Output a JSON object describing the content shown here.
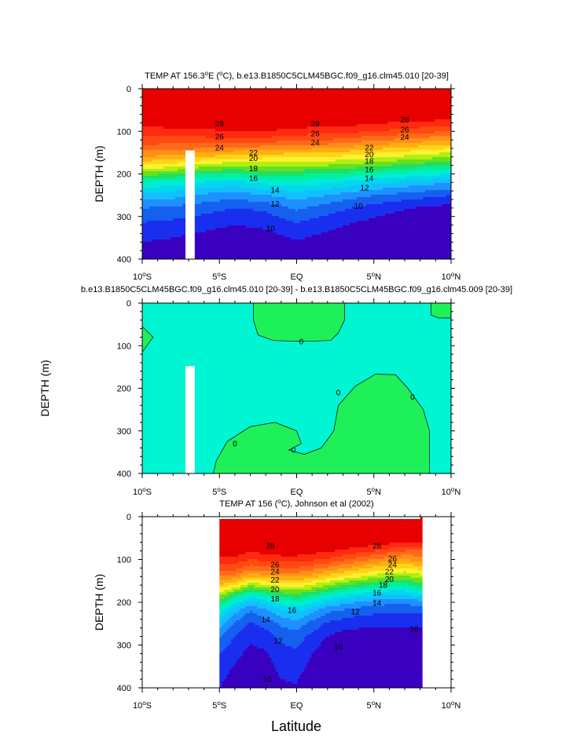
{
  "figure": {
    "xlabel": "Latitude"
  },
  "colors": {
    "palette": [
      "#3a00c0",
      "#1a2ef0",
      "#1660f0",
      "#1e90ff",
      "#14bfff",
      "#00d8ec",
      "#00ecd6",
      "#00f0a0",
      "#20e060",
      "#66e020",
      "#b0f010",
      "#fff030",
      "#ffd418",
      "#ffae10",
      "#ff8e1a",
      "#ff6a1a",
      "#ff4a12",
      "#ff2a10",
      "#e80000"
    ],
    "diff_background": "#00f5d2",
    "diff_positive": "#1ef05a"
  },
  "chart_data": [
    {
      "type": "contour",
      "title_parts": [
        "TEMP AT 156.3",
        "o",
        "E (",
        "o",
        "C), b.e13.B1850C5CLM45BGC.f09_g16.clm45.010 [20-39]"
      ],
      "ylabel": "DEPTH (m)",
      "xlim": [
        -10,
        10
      ],
      "ylim": [
        400,
        0
      ],
      "xticks": [
        "10",
        "5",
        "EQ",
        "5",
        "10"
      ],
      "xtick_suffix": [
        "S",
        "S",
        "",
        "N",
        "N"
      ],
      "yticks": [
        "0",
        "100",
        "200",
        "300",
        "400"
      ],
      "depths": [
        0,
        30,
        60,
        80,
        100,
        120,
        140,
        160,
        180,
        200,
        220,
        250,
        280,
        320,
        360,
        400
      ],
      "x": [
        -10,
        -8,
        -6,
        -4,
        -2,
        0,
        2,
        4,
        6,
        8,
        10
      ],
      "z": [
        [
          28.5,
          28.8,
          29.3,
          29.6,
          29.6,
          29.5,
          29.5,
          29.5,
          29.4,
          29.0,
          28.6
        ],
        [
          28.4,
          28.7,
          29.2,
          29.4,
          29.3,
          29.1,
          29.1,
          29.1,
          29.0,
          28.8,
          28.5
        ],
        [
          28.0,
          28.3,
          28.6,
          28.7,
          28.4,
          28.2,
          28.3,
          28.2,
          28.1,
          28.0,
          27.8
        ],
        [
          27.2,
          27.4,
          27.6,
          27.8,
          27.7,
          27.6,
          27.5,
          27.3,
          27.0,
          26.8,
          26.5
        ],
        [
          26.6,
          26.8,
          26.8,
          27.0,
          27.0,
          26.6,
          26.5,
          26.2,
          25.8,
          25.4,
          25.0
        ],
        [
          25.6,
          25.6,
          25.6,
          25.6,
          25.6,
          25.2,
          25.0,
          24.5,
          24.0,
          23.5,
          23.0
        ],
        [
          24.5,
          24.3,
          24.0,
          23.7,
          23.5,
          23.2,
          23.0,
          22.5,
          22.0,
          21.5,
          21.0
        ],
        [
          23.0,
          22.6,
          21.9,
          21.5,
          21.3,
          21.0,
          21.0,
          20.5,
          20.0,
          19.5,
          19.0
        ],
        [
          21.0,
          20.5,
          19.5,
          19.2,
          19.3,
          19.0,
          19.0,
          18.5,
          18.0,
          17.5,
          17.0
        ],
        [
          18.5,
          18.0,
          17.0,
          16.8,
          17.3,
          17.2,
          17.0,
          16.5,
          16.0,
          15.5,
          15.0
        ],
        [
          16.0,
          15.5,
          14.8,
          14.6,
          15.3,
          15.5,
          15.2,
          14.5,
          14.0,
          13.5,
          13.0
        ],
        [
          13.6,
          13.4,
          12.8,
          12.4,
          13.0,
          13.5,
          13.0,
          12.3,
          11.8,
          11.4,
          11.0
        ],
        [
          12.0,
          11.8,
          11.4,
          11.0,
          11.2,
          12.2,
          11.5,
          10.8,
          10.3,
          9.9,
          9.6
        ],
        [
          10.8,
          10.6,
          10.3,
          10.0,
          10.2,
          10.8,
          10.3,
          9.8,
          9.4,
          9.1,
          8.9
        ],
        [
          10.0,
          9.8,
          9.5,
          9.1,
          9.4,
          9.9,
          9.5,
          9.1,
          8.8,
          8.6,
          8.6
        ],
        [
          9.2,
          9.0,
          8.8,
          8.5,
          8.8,
          9.3,
          8.9,
          8.6,
          8.5,
          8.0,
          8.3
        ]
      ],
      "levels": [
        9,
        10,
        11,
        12,
        13,
        14,
        15,
        16,
        17,
        18,
        19,
        20,
        21,
        22,
        23,
        24,
        25,
        26,
        27,
        28,
        29
      ],
      "missing_strip_x": [
        -7.2,
        -6.6
      ],
      "contour_labels": [
        {
          "text": "28",
          "x": -5.0,
          "y": 82
        },
        {
          "text": "26",
          "x": -5.0,
          "y": 112
        },
        {
          "text": "24",
          "x": -5.0,
          "y": 138
        },
        {
          "text": "22",
          "x": -2.8,
          "y": 150
        },
        {
          "text": "20",
          "x": -2.8,
          "y": 163
        },
        {
          "text": "18",
          "x": -2.8,
          "y": 187
        },
        {
          "text": "16",
          "x": -2.8,
          "y": 210
        },
        {
          "text": "14",
          "x": -1.4,
          "y": 238
        },
        {
          "text": "12",
          "x": -1.4,
          "y": 270
        },
        {
          "text": "10",
          "x": -1.7,
          "y": 328
        },
        {
          "text": "28",
          "x": 1.2,
          "y": 82
        },
        {
          "text": "26",
          "x": 1.2,
          "y": 105
        },
        {
          "text": "24",
          "x": 1.2,
          "y": 126
        },
        {
          "text": "22",
          "x": 4.7,
          "y": 138
        },
        {
          "text": "20",
          "x": 4.7,
          "y": 154
        },
        {
          "text": "18",
          "x": 4.7,
          "y": 170
        },
        {
          "text": "16",
          "x": 4.7,
          "y": 190
        },
        {
          "text": "14",
          "x": 4.7,
          "y": 210
        },
        {
          "text": "12",
          "x": 4.4,
          "y": 232
        },
        {
          "text": "10",
          "x": 4.0,
          "y": 276
        },
        {
          "text": "28",
          "x": 7.0,
          "y": 73
        },
        {
          "text": "26",
          "x": 7.0,
          "y": 96
        },
        {
          "text": "24",
          "x": 7.0,
          "y": 113
        }
      ]
    },
    {
      "type": "contour",
      "title_parts": [
        "b.e13.B1850C5CLM45BGC.f09_g16.clm45.010 [20-39] - b.e13.B1850C5CLM45BGC.f09_g16.clm45.009 [20-39]"
      ],
      "ylabel": "DEPTH (m)",
      "xlim": [
        -10,
        10
      ],
      "ylim": [
        400,
        0
      ],
      "xticks": [
        "10",
        "5",
        "EQ",
        "5",
        "10"
      ],
      "xtick_suffix": [
        "S",
        "S",
        "",
        "N",
        "N"
      ],
      "yticks": [
        "0",
        "100",
        "200",
        "300",
        "400"
      ],
      "zero_contour_labels": [
        {
          "text": "0",
          "x": 0.3,
          "y": 90
        },
        {
          "text": "0",
          "x": 2.7,
          "y": 210
        },
        {
          "text": "0",
          "x": 7.5,
          "y": 220
        },
        {
          "text": "0",
          "x": -4.0,
          "y": 330
        },
        {
          "text": "0",
          "x": -0.2,
          "y": 345
        }
      ]
    },
    {
      "type": "contour",
      "title_parts": [
        "TEMP AT 156 (",
        "o",
        "C), Johnson et al (2002)"
      ],
      "ylabel": "DEPTH (m)",
      "xlim": [
        -10,
        10
      ],
      "ylim": [
        400,
        0
      ],
      "data_xrange": [
        -5,
        8
      ],
      "xticks": [
        "10",
        "5",
        "EQ",
        "5",
        "10"
      ],
      "xtick_suffix": [
        "S",
        "S",
        "",
        "N",
        "N"
      ],
      "yticks": [
        "0",
        "100",
        "200",
        "300",
        "400"
      ],
      "depths": [
        0,
        30,
        60,
        80,
        100,
        120,
        140,
        160,
        180,
        200,
        220,
        250,
        280,
        320,
        360,
        400
      ],
      "x": [
        -5,
        -4,
        -3,
        -2,
        -1,
        0,
        1,
        2,
        3,
        4,
        5,
        6,
        7,
        8
      ],
      "z": [
        [
          29.3,
          29.4,
          29.5,
          29.5,
          29.6,
          29.5,
          29.5,
          29.4,
          29.4,
          29.3,
          29.2,
          29.1,
          29.0,
          28.8
        ],
        [
          28.9,
          29.0,
          29.1,
          29.2,
          29.2,
          29.1,
          29.1,
          29.0,
          29.0,
          28.9,
          28.8,
          28.7,
          28.6,
          28.4
        ],
        [
          28.2,
          28.3,
          28.2,
          28.3,
          28.4,
          28.3,
          28.3,
          28.2,
          28.0,
          27.8,
          27.6,
          27.3,
          27.0,
          27.0
        ],
        [
          27.5,
          27.6,
          27.2,
          27.4,
          27.6,
          27.6,
          27.4,
          27.2,
          26.8,
          26.4,
          26.0,
          25.5,
          25.0,
          24.8
        ],
        [
          26.6,
          26.7,
          26.0,
          26.3,
          26.5,
          26.5,
          26.2,
          25.8,
          25.2,
          24.6,
          24.0,
          23.4,
          23.0,
          23.5
        ],
        [
          25.5,
          25.4,
          24.4,
          24.7,
          25.0,
          25.0,
          24.5,
          23.8,
          23.2,
          22.5,
          21.8,
          21.3,
          21.0,
          21.5
        ],
        [
          24.0,
          23.6,
          22.3,
          22.6,
          23.0,
          23.0,
          22.4,
          21.6,
          20.8,
          20.1,
          19.5,
          19.0,
          18.8,
          19.5
        ],
        [
          22.0,
          21.0,
          19.2,
          19.8,
          20.5,
          20.6,
          19.9,
          19.0,
          18.2,
          17.5,
          17.0,
          16.6,
          16.5,
          17.5
        ],
        [
          19.6,
          17.8,
          16.0,
          16.8,
          17.8,
          18.2,
          17.4,
          16.4,
          15.6,
          15.0,
          14.5,
          14.2,
          14.1,
          15.0
        ],
        [
          17.5,
          15.2,
          13.5,
          14.4,
          15.5,
          16.0,
          15.0,
          14.0,
          13.4,
          12.9,
          12.5,
          12.3,
          12.3,
          12.5
        ],
        [
          15.5,
          13.4,
          12.0,
          12.8,
          13.8,
          14.2,
          13.2,
          12.2,
          11.8,
          11.5,
          11.3,
          11.2,
          11.2,
          11.3
        ],
        [
          13.5,
          11.8,
          10.8,
          11.4,
          12.2,
          12.6,
          11.6,
          10.8,
          10.5,
          10.3,
          10.2,
          10.2,
          10.2,
          10.2
        ],
        [
          12.0,
          11.0,
          10.2,
          10.5,
          11.3,
          11.5,
          10.7,
          10.0,
          9.6,
          9.5,
          9.4,
          9.4,
          9.5,
          9.6
        ],
        [
          11.0,
          10.3,
          9.7,
          9.9,
          10.6,
          10.8,
          10.0,
          9.3,
          9.0,
          8.9,
          8.9,
          8.9,
          8.9,
          9.0
        ],
        [
          10.4,
          9.8,
          9.3,
          9.5,
          10.2,
          10.3,
          9.6,
          8.9,
          8.6,
          8.5,
          8.5,
          8.5,
          8.6,
          8.7
        ],
        [
          10.0,
          9.4,
          9.0,
          9.2,
          9.8,
          9.9,
          9.2,
          8.6,
          8.3,
          8.2,
          8.2,
          8.2,
          8.3,
          8.4
        ]
      ],
      "levels": [
        9,
        10,
        11,
        12,
        13,
        14,
        15,
        16,
        17,
        18,
        19,
        20,
        21,
        22,
        23,
        24,
        25,
        26,
        27,
        28,
        29
      ],
      "contour_labels": [
        {
          "text": "28",
          "x": -1.7,
          "y": 68
        },
        {
          "text": "26",
          "x": -1.4,
          "y": 112
        },
        {
          "text": "24",
          "x": -1.4,
          "y": 128
        },
        {
          "text": "22",
          "x": -1.4,
          "y": 148
        },
        {
          "text": "20",
          "x": -1.4,
          "y": 170
        },
        {
          "text": "18",
          "x": -1.4,
          "y": 192
        },
        {
          "text": "16",
          "x": -0.3,
          "y": 218
        },
        {
          "text": "14",
          "x": -2.0,
          "y": 240
        },
        {
          "text": "12",
          "x": -1.2,
          "y": 290
        },
        {
          "text": "10",
          "x": 2.7,
          "y": 305
        },
        {
          "text": "10",
          "x": -1.9,
          "y": 380
        },
        {
          "text": "12",
          "x": 3.8,
          "y": 222
        },
        {
          "text": "14",
          "x": 5.2,
          "y": 202
        },
        {
          "text": "16",
          "x": 5.2,
          "y": 178
        },
        {
          "text": "18",
          "x": 5.6,
          "y": 160
        },
        {
          "text": "20",
          "x": 6.0,
          "y": 146
        },
        {
          "text": "22",
          "x": 6.0,
          "y": 128
        },
        {
          "text": "24",
          "x": 6.2,
          "y": 112
        },
        {
          "text": "26",
          "x": 6.2,
          "y": 98
        },
        {
          "text": "28",
          "x": 5.2,
          "y": 68
        },
        {
          "text": "10",
          "x": 7.6,
          "y": 262
        }
      ]
    }
  ]
}
